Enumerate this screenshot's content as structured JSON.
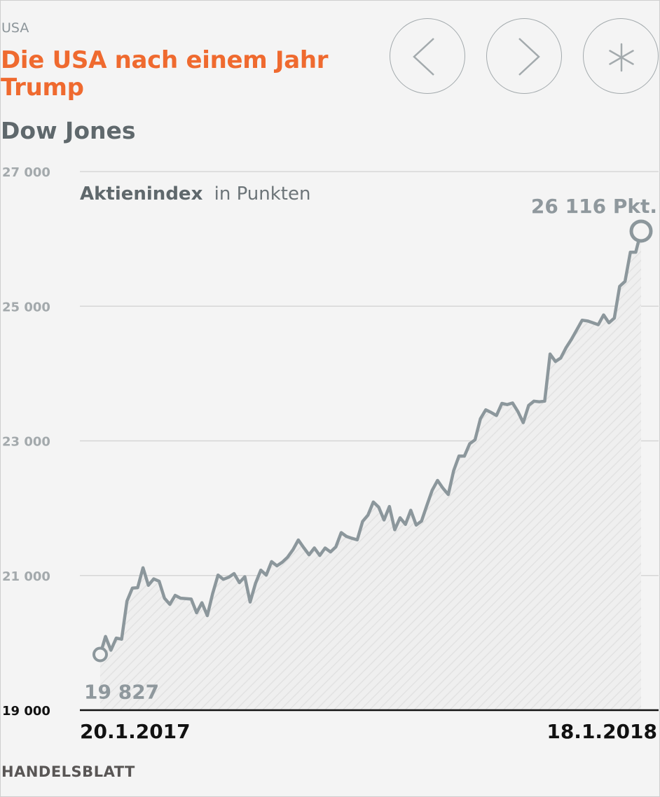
{
  "kicker": "USA",
  "headline": "Die USA nach einem Jahr Trump",
  "subtitle": "Dow Jones",
  "nav": {
    "prev_icon": "chevron-left-icon",
    "next_icon": "chevron-right-icon",
    "star_icon": "asterisk-icon"
  },
  "logo": "HANDELSBLATT",
  "colors": {
    "headline": "#ef6a2f",
    "line": "#8c979c",
    "text": "#5f686c"
  },
  "chart_data": {
    "type": "area",
    "unit_label_bold": "Aktienindex",
    "unit_label_rest": "in Punkten",
    "ylim": [
      19000,
      27000
    ],
    "yticks": [
      19000,
      21000,
      23000,
      25000,
      27000
    ],
    "ytick_labels": [
      "19 000",
      "21 000",
      "23 000",
      "25 000",
      "27 000"
    ],
    "x_start_label": "20.1.2017",
    "x_end_label": "18.1.2018",
    "start_value_label": "19 827",
    "end_value_label": "26 116 Pkt.",
    "grid": true,
    "values": [
      19827,
      20094,
      19891,
      20071,
      20054,
      20619,
      20812,
      20820,
      21115,
      20855,
      20950,
      20915,
      20663,
      20572,
      20705,
      20663,
      20656,
      20650,
      20447,
      20596,
      20404,
      20732,
      21007,
      20943,
      20975,
      21029,
      20894,
      20982,
      20606,
      20884,
      21080,
      21006,
      21206,
      21144,
      21197,
      21272,
      21384,
      21528,
      21414,
      21308,
      21409,
      21298,
      21408,
      21350,
      21425,
      21637,
      21580,
      21553,
      21530,
      21803,
      21897,
      22092,
      22016,
      21826,
      22025,
      21680,
      21858,
      21760,
      21969,
      21750,
      21808,
      22043,
      22268,
      22412,
      22297,
      22203,
      22558,
      22775,
      22773,
      22957,
      23016,
      23329,
      23461,
      23422,
      23377,
      23557,
      23539,
      23563,
      23435,
      23271,
      23526,
      23590,
      23580,
      23590,
      24290,
      24180,
      24231,
      24386,
      24508,
      24651,
      24792,
      24781,
      24754,
      24726,
      24871,
      24754,
      24824,
      25295,
      25369,
      25803,
      25803,
      26116
    ]
  }
}
